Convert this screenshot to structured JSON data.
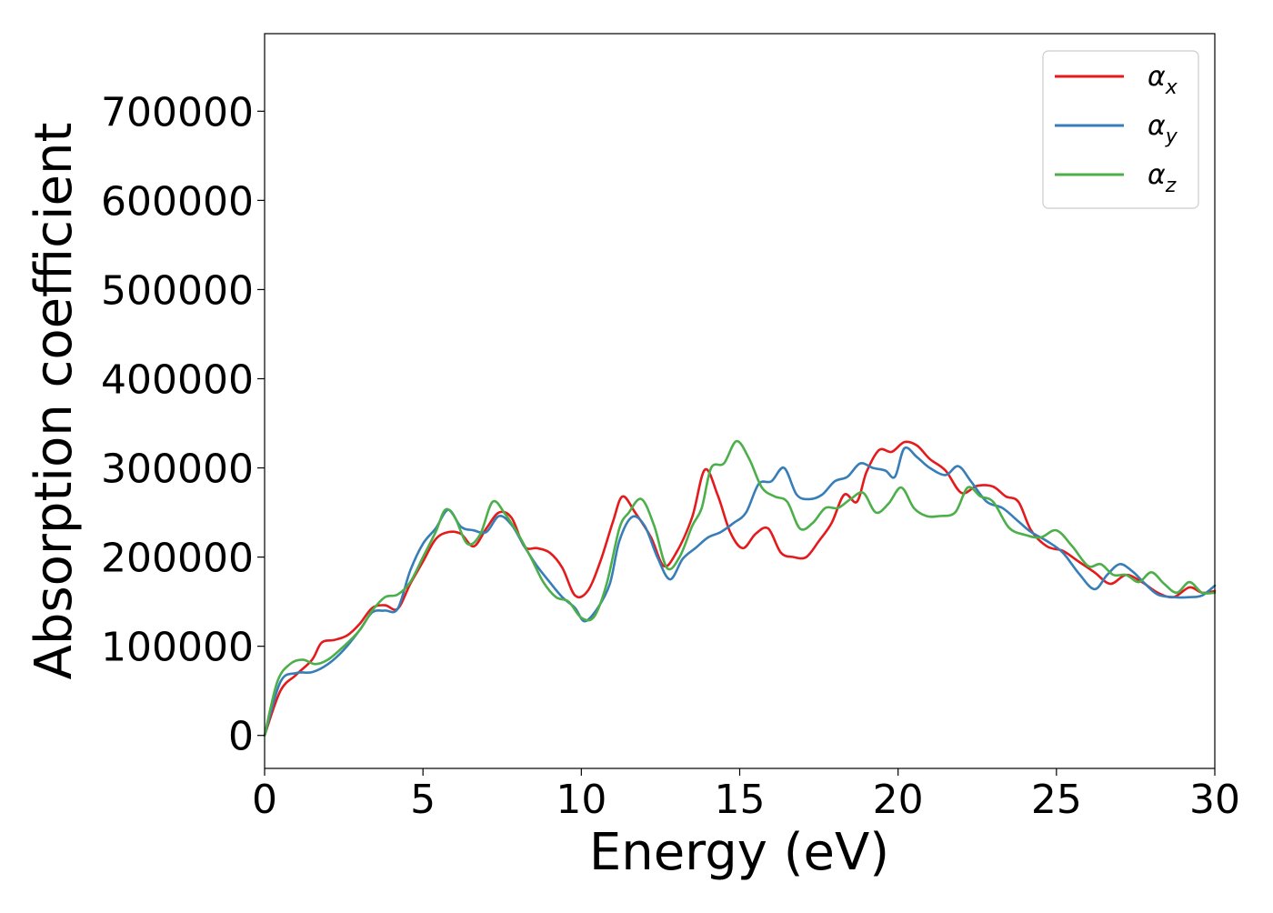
{
  "chart_data": {
    "type": "line",
    "xlabel": "Energy (eV)",
    "ylabel": "Absorption coefficient",
    "xlim": [
      0,
      30
    ],
    "ylim": [
      -37000,
      787000
    ],
    "xticks": [
      0,
      5,
      10,
      15,
      20,
      25,
      30
    ],
    "yticks": [
      0,
      100000,
      200000,
      300000,
      400000,
      500000,
      600000,
      700000
    ],
    "grid": false,
    "legend_position": "top-right",
    "series": [
      {
        "name": "α",
        "subscript": "x",
        "color": "#e41a1c",
        "points": [
          [
            0,
            0
          ],
          [
            0.5,
            50000
          ],
          [
            1,
            68000
          ],
          [
            1.5,
            85000
          ],
          [
            1.8,
            104000
          ],
          [
            2.2,
            107000
          ],
          [
            2.6,
            112000
          ],
          [
            3.0,
            125000
          ],
          [
            3.4,
            143000
          ],
          [
            3.8,
            146000
          ],
          [
            4.2,
            142000
          ],
          [
            4.6,
            170000
          ],
          [
            5.0,
            195000
          ],
          [
            5.4,
            220000
          ],
          [
            5.8,
            228000
          ],
          [
            6.2,
            226000
          ],
          [
            6.6,
            212000
          ],
          [
            7.0,
            232000
          ],
          [
            7.4,
            250000
          ],
          [
            7.8,
            244000
          ],
          [
            8.2,
            212000
          ],
          [
            8.6,
            210000
          ],
          [
            9.0,
            205000
          ],
          [
            9.4,
            188000
          ],
          [
            9.8,
            157000
          ],
          [
            10.2,
            162000
          ],
          [
            10.6,
            195000
          ],
          [
            11.0,
            240000
          ],
          [
            11.3,
            268000
          ],
          [
            11.7,
            250000
          ],
          [
            12.2,
            222000
          ],
          [
            12.6,
            190000
          ],
          [
            13.0,
            205000
          ],
          [
            13.5,
            245000
          ],
          [
            13.9,
            298000
          ],
          [
            14.3,
            270000
          ],
          [
            14.7,
            228000
          ],
          [
            15.1,
            210000
          ],
          [
            15.5,
            226000
          ],
          [
            15.9,
            232000
          ],
          [
            16.3,
            205000
          ],
          [
            16.7,
            200000
          ],
          [
            17.1,
            200000
          ],
          [
            17.5,
            218000
          ],
          [
            17.9,
            238000
          ],
          [
            18.3,
            270000
          ],
          [
            18.7,
            262000
          ],
          [
            19.0,
            295000
          ],
          [
            19.4,
            320000
          ],
          [
            19.8,
            318000
          ],
          [
            20.2,
            329000
          ],
          [
            20.6,
            325000
          ],
          [
            21.0,
            310000
          ],
          [
            21.5,
            297000
          ],
          [
            22.0,
            272000
          ],
          [
            22.5,
            280000
          ],
          [
            23.0,
            279000
          ],
          [
            23.4,
            268000
          ],
          [
            23.8,
            262000
          ],
          [
            24.2,
            230000
          ],
          [
            24.7,
            212000
          ],
          [
            25.2,
            207000
          ],
          [
            25.7,
            195000
          ],
          [
            26.2,
            183000
          ],
          [
            26.7,
            170000
          ],
          [
            27.2,
            180000
          ],
          [
            27.7,
            172000
          ],
          [
            28.2,
            160000
          ],
          [
            28.7,
            155000
          ],
          [
            29.2,
            166000
          ],
          [
            29.6,
            160000
          ],
          [
            30.0,
            162000
          ]
        ]
      },
      {
        "name": "α",
        "subscript": "y",
        "color": "#377eb8",
        "points": [
          [
            0,
            0
          ],
          [
            0.5,
            60000
          ],
          [
            1,
            70000
          ],
          [
            1.5,
            71000
          ],
          [
            2.0,
            80000
          ],
          [
            2.5,
            96000
          ],
          [
            3.0,
            118000
          ],
          [
            3.4,
            138000
          ],
          [
            3.8,
            140000
          ],
          [
            4.2,
            142000
          ],
          [
            4.6,
            185000
          ],
          [
            5.0,
            215000
          ],
          [
            5.4,
            232000
          ],
          [
            5.8,
            253000
          ],
          [
            6.2,
            234000
          ],
          [
            6.6,
            230000
          ],
          [
            7.0,
            228000
          ],
          [
            7.4,
            246000
          ],
          [
            7.8,
            236000
          ],
          [
            8.2,
            212000
          ],
          [
            8.6,
            190000
          ],
          [
            9.0,
            172000
          ],
          [
            9.4,
            155000
          ],
          [
            9.8,
            143000
          ],
          [
            10.1,
            128000
          ],
          [
            10.5,
            142000
          ],
          [
            10.9,
            170000
          ],
          [
            11.2,
            218000
          ],
          [
            11.6,
            245000
          ],
          [
            12.0,
            235000
          ],
          [
            12.4,
            200000
          ],
          [
            12.8,
            175000
          ],
          [
            13.2,
            198000
          ],
          [
            13.6,
            210000
          ],
          [
            14.0,
            222000
          ],
          [
            14.4,
            228000
          ],
          [
            14.8,
            238000
          ],
          [
            15.2,
            250000
          ],
          [
            15.6,
            282000
          ],
          [
            16.0,
            285000
          ],
          [
            16.4,
            300000
          ],
          [
            16.8,
            270000
          ],
          [
            17.2,
            265000
          ],
          [
            17.6,
            270000
          ],
          [
            18.0,
            285000
          ],
          [
            18.4,
            290000
          ],
          [
            18.8,
            305000
          ],
          [
            19.2,
            300000
          ],
          [
            19.6,
            297000
          ],
          [
            19.9,
            290000
          ],
          [
            20.2,
            322000
          ],
          [
            20.6,
            312000
          ],
          [
            21.0,
            300000
          ],
          [
            21.5,
            292000
          ],
          [
            21.9,
            302000
          ],
          [
            22.3,
            285000
          ],
          [
            22.8,
            262000
          ],
          [
            23.3,
            255000
          ],
          [
            23.8,
            240000
          ],
          [
            24.2,
            228000
          ],
          [
            24.7,
            218000
          ],
          [
            25.2,
            205000
          ],
          [
            25.7,
            182000
          ],
          [
            26.2,
            164000
          ],
          [
            26.6,
            180000
          ],
          [
            27.0,
            192000
          ],
          [
            27.4,
            184000
          ],
          [
            27.8,
            170000
          ],
          [
            28.2,
            158000
          ],
          [
            28.7,
            155000
          ],
          [
            29.2,
            155000
          ],
          [
            29.6,
            157000
          ],
          [
            30.0,
            168000
          ]
        ]
      },
      {
        "name": "α",
        "subscript": "z",
        "color": "#4daf4a",
        "points": [
          [
            0,
            0
          ],
          [
            0.4,
            60000
          ],
          [
            0.8,
            80000
          ],
          [
            1.2,
            85000
          ],
          [
            1.6,
            80000
          ],
          [
            2.0,
            85000
          ],
          [
            2.5,
            100000
          ],
          [
            3.0,
            118000
          ],
          [
            3.4,
            140000
          ],
          [
            3.8,
            155000
          ],
          [
            4.2,
            158000
          ],
          [
            4.6,
            172000
          ],
          [
            5.0,
            200000
          ],
          [
            5.4,
            228000
          ],
          [
            5.7,
            253000
          ],
          [
            6.0,
            245000
          ],
          [
            6.4,
            215000
          ],
          [
            6.8,
            225000
          ],
          [
            7.2,
            262000
          ],
          [
            7.6,
            248000
          ],
          [
            8.0,
            226000
          ],
          [
            8.4,
            200000
          ],
          [
            8.8,
            172000
          ],
          [
            9.2,
            155000
          ],
          [
            9.6,
            150000
          ],
          [
            10.0,
            132000
          ],
          [
            10.4,
            133000
          ],
          [
            10.8,
            170000
          ],
          [
            11.2,
            232000
          ],
          [
            11.5,
            250000
          ],
          [
            11.9,
            265000
          ],
          [
            12.3,
            235000
          ],
          [
            12.7,
            188000
          ],
          [
            13.1,
            200000
          ],
          [
            13.5,
            235000
          ],
          [
            13.8,
            255000
          ],
          [
            14.1,
            300000
          ],
          [
            14.5,
            305000
          ],
          [
            14.9,
            330000
          ],
          [
            15.3,
            310000
          ],
          [
            15.7,
            278000
          ],
          [
            16.1,
            268000
          ],
          [
            16.5,
            262000
          ],
          [
            16.9,
            232000
          ],
          [
            17.3,
            238000
          ],
          [
            17.7,
            255000
          ],
          [
            18.1,
            255000
          ],
          [
            18.5,
            265000
          ],
          [
            18.9,
            272000
          ],
          [
            19.3,
            250000
          ],
          [
            19.7,
            260000
          ],
          [
            20.1,
            278000
          ],
          [
            20.5,
            255000
          ],
          [
            20.9,
            246000
          ],
          [
            21.3,
            246000
          ],
          [
            21.8,
            250000
          ],
          [
            22.2,
            278000
          ],
          [
            22.6,
            268000
          ],
          [
            23.0,
            262000
          ],
          [
            23.5,
            233000
          ],
          [
            24.0,
            225000
          ],
          [
            24.5,
            222000
          ],
          [
            25.0,
            230000
          ],
          [
            25.5,
            212000
          ],
          [
            26.0,
            190000
          ],
          [
            26.4,
            192000
          ],
          [
            26.8,
            180000
          ],
          [
            27.2,
            180000
          ],
          [
            27.6,
            172000
          ],
          [
            28.0,
            183000
          ],
          [
            28.4,
            170000
          ],
          [
            28.8,
            160000
          ],
          [
            29.2,
            172000
          ],
          [
            29.6,
            160000
          ],
          [
            30.0,
            160000
          ]
        ]
      }
    ]
  }
}
